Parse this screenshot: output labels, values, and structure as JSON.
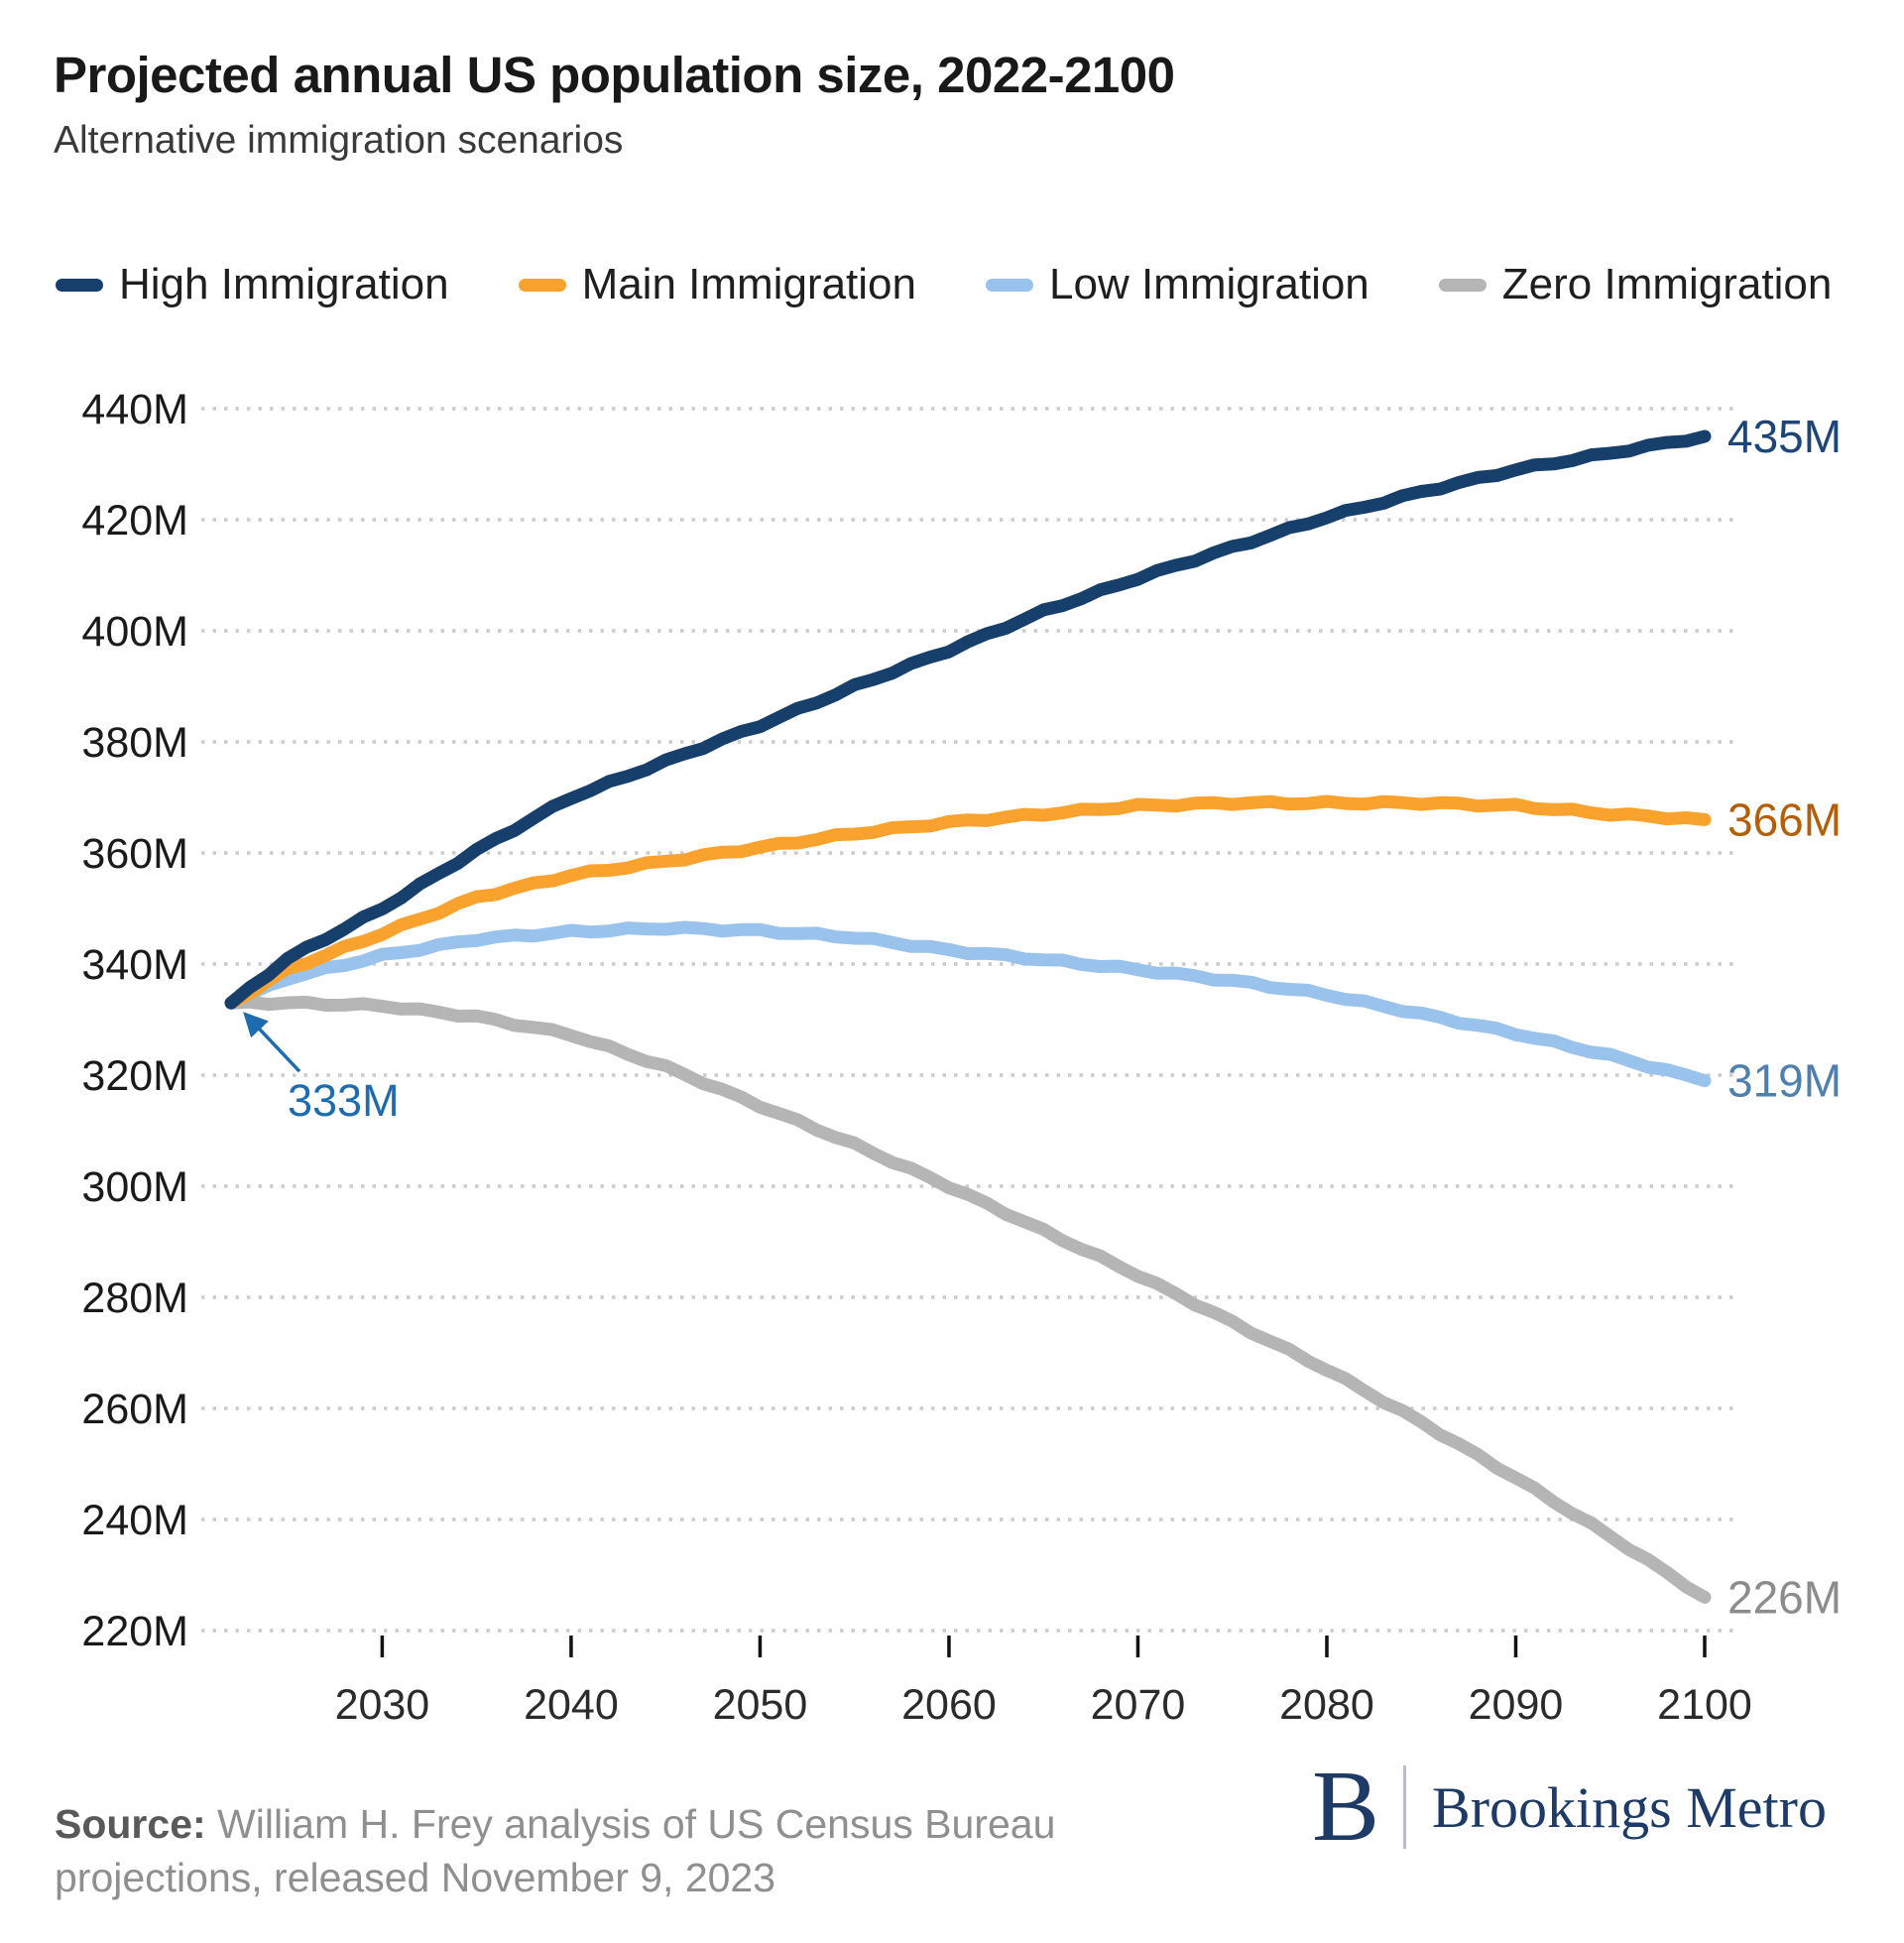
{
  "header": {
    "title": "Projected annual US population size, 2022-2100",
    "subtitle": "Alternative immigration scenarios"
  },
  "chart_data": {
    "type": "line",
    "title": "Projected annual US population size, 2022-2100",
    "subtitle": "Alternative immigration scenarios",
    "xlabel": "",
    "ylabel": "",
    "xlim": [
      2022,
      2100
    ],
    "ylim": [
      220,
      440
    ],
    "grid": "horizontal-dotted",
    "legend_position": "top",
    "x": [
      2022,
      2025,
      2030,
      2035,
      2040,
      2045,
      2050,
      2055,
      2060,
      2065,
      2070,
      2075,
      2080,
      2085,
      2090,
      2095,
      2100
    ],
    "series": [
      {
        "name": "High Immigration",
        "color": "#173F6B",
        "end_label": "435M",
        "end_label_color": "#1C4679",
        "values": [
          333,
          341,
          350,
          360.5,
          370,
          376.5,
          383,
          390,
          396.5,
          403.5,
          409.5,
          415,
          420.5,
          425,
          429,
          432,
          435
        ]
      },
      {
        "name": "Main Immigration",
        "color": "#FAA22E",
        "end_label": "366M",
        "end_label_color": "#B45F06",
        "values": [
          333,
          339,
          345.5,
          352,
          356,
          358.5,
          361,
          363.5,
          365.5,
          367,
          368.5,
          369,
          369,
          369,
          368.5,
          367,
          366
        ]
      },
      {
        "name": "Low Immigration",
        "color": "#99C2EC",
        "end_label": "319M",
        "end_label_color": "#4E7FAE",
        "values": [
          333,
          337.5,
          341.5,
          344.5,
          345.8,
          346.5,
          346,
          344.8,
          342.5,
          340.8,
          339,
          337,
          334.5,
          331,
          327.5,
          323.5,
          319
        ]
      },
      {
        "name": "Zero Immigration",
        "color": "#B5B5B5",
        "end_label": "226M",
        "end_label_color": "#8C8C8C",
        "values": [
          333,
          333,
          332.5,
          330.5,
          327.3,
          321.5,
          314.5,
          307.5,
          300,
          292,
          284,
          275.5,
          267,
          257.5,
          247.5,
          237,
          226
        ]
      }
    ],
    "y_ticks": [
      440,
      420,
      400,
      380,
      360,
      340,
      320,
      300,
      280,
      260,
      240,
      220
    ],
    "y_tick_suffix": "M",
    "x_ticks": [
      2030,
      2040,
      2050,
      2060,
      2070,
      2080,
      2090,
      2100
    ],
    "annotation": {
      "text": "333M",
      "year": 2022,
      "value": 333,
      "color": "#1E6CB0"
    },
    "colors": {
      "gridline": "#CBCBCB",
      "tick_mark": "#111111",
      "y_tick_label": "#1A1A1A",
      "x_tick_label": "#2B2B2B"
    }
  },
  "footer": {
    "source_label": "Source:",
    "source_text": " William H. Frey analysis of US Census Bureau projections, released November 9, 2023",
    "logo_b": "B",
    "logo_text": "Brookings Metro"
  }
}
